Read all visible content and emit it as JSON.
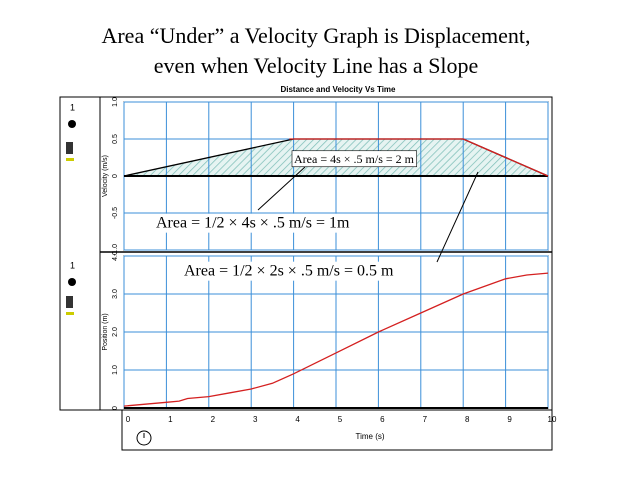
{
  "slide_title": [
    "Area “Under” a Velocity Graph is Displacement,",
    "even when Velocity Line has a Slope"
  ],
  "window_title": "Distance  and  Velocity  Vs  Time",
  "panel_labels": [
    "1",
    "1"
  ],
  "annotations": [
    "Area = 4s × .5 m/s = 2 m",
    "Area = 1/2 × 4s × .5 m/s = 1m",
    "Area = 1/2 × 2s × .5 m/s = 0.5 m"
  ],
  "chart_data": [
    {
      "type": "line",
      "y_label": "Velocity (m/s)",
      "xlim": [
        0,
        10
      ],
      "xticks": [
        0,
        1,
        2,
        3,
        4,
        5,
        6,
        7,
        8,
        9,
        10
      ],
      "ylim": [
        -1,
        1
      ],
      "yticks": [
        {
          "value": -1,
          "label": "-1.0"
        },
        -0.5,
        0,
        0.5,
        {
          "value": 1,
          "label": "1.0"
        }
      ],
      "grid": true,
      "series": [
        {
          "color": "#000000",
          "fill": "hatch",
          "x": [
            0,
            4,
            8,
            10
          ],
          "values": [
            0,
            0.5,
            0.5,
            0
          ]
        },
        {
          "color": "#d42020",
          "x": [
            3.9,
            8,
            10
          ],
          "values": [
            0.5,
            0.5,
            0
          ]
        }
      ]
    },
    {
      "type": "line",
      "y_label": "Position (m)",
      "x_label": "Time (s)",
      "xlim": [
        0,
        10
      ],
      "xticks": [
        0,
        1,
        2,
        3,
        4,
        5,
        6,
        7,
        8,
        9,
        10
      ],
      "ylim": [
        0,
        4
      ],
      "yticks": [
        0,
        {
          "value": 1,
          "label": "1.0"
        },
        {
          "value": 2,
          "label": "2.0"
        },
        {
          "value": 3,
          "label": "3.0"
        },
        {
          "value": 4,
          "label": "4.0"
        }
      ],
      "grid": true,
      "series": [
        {
          "color": "#d42020",
          "x": [
            0,
            0.5,
            1,
            1.3,
            1.5,
            2,
            2.5,
            3,
            3.5,
            4,
            5,
            6,
            7,
            8,
            8.5,
            9,
            9.5,
            10
          ],
          "values": [
            0.05,
            0.1,
            0.15,
            0.18,
            0.25,
            0.3,
            0.4,
            0.5,
            0.65,
            0.9,
            1.45,
            2.0,
            2.5,
            3.0,
            3.2,
            3.4,
            3.5,
            3.55
          ]
        }
      ]
    }
  ]
}
